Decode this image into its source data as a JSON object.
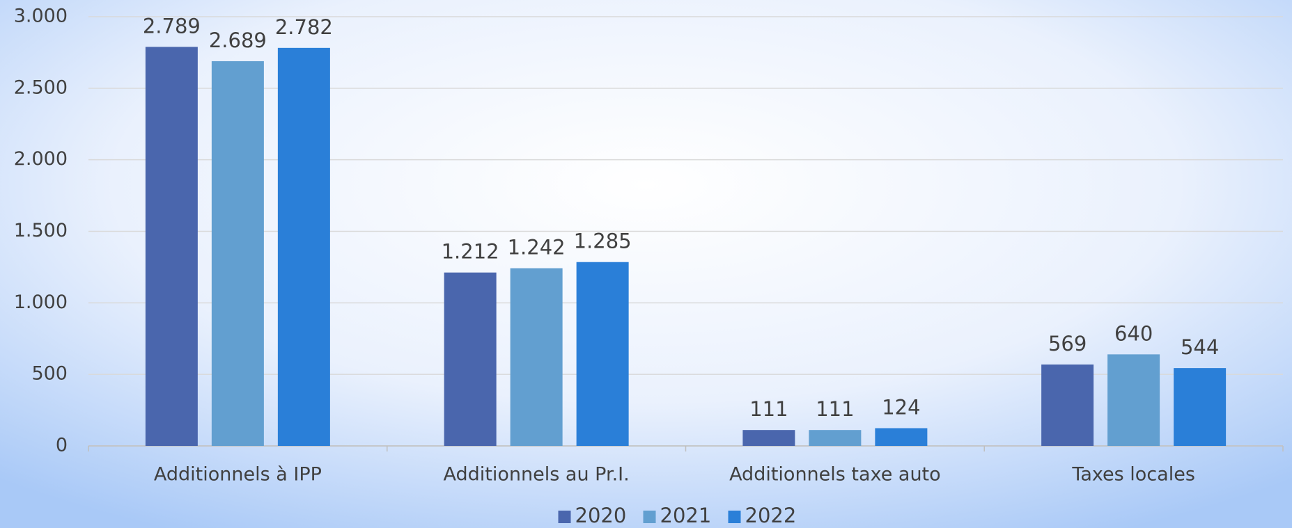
{
  "chart_data": {
    "type": "bar",
    "categories": [
      "Additionnels à IPP",
      "Additionnels au Pr.I.",
      "Additionnels taxe auto",
      "Taxes locales"
    ],
    "series": [
      {
        "name": "2020",
        "color": "#4a66ad",
        "values": [
          2789,
          1212,
          111,
          569
        ],
        "value_labels": [
          "2.789",
          "1.212",
          "111",
          "569"
        ]
      },
      {
        "name": "2021",
        "color": "#629fd0",
        "values": [
          2689,
          1242,
          111,
          640
        ],
        "value_labels": [
          "2.689",
          "1.242",
          "111",
          "640"
        ]
      },
      {
        "name": "2022",
        "color": "#2a7fd8",
        "values": [
          2782,
          1285,
          124,
          544
        ],
        "value_labels": [
          "2.782",
          "1.285",
          "124",
          "544"
        ]
      }
    ],
    "ylim": [
      0,
      3000
    ],
    "yticks": [
      0,
      500,
      {
        "value": 1000,
        "label": "1.000"
      },
      {
        "value": 1500,
        "label": "1.500"
      },
      {
        "value": 2000,
        "label": "2.000"
      },
      {
        "value": 2500,
        "label": "2.500"
      },
      {
        "value": 3000,
        "label": "3.000"
      }
    ],
    "grid": true,
    "legend": "bottom"
  }
}
